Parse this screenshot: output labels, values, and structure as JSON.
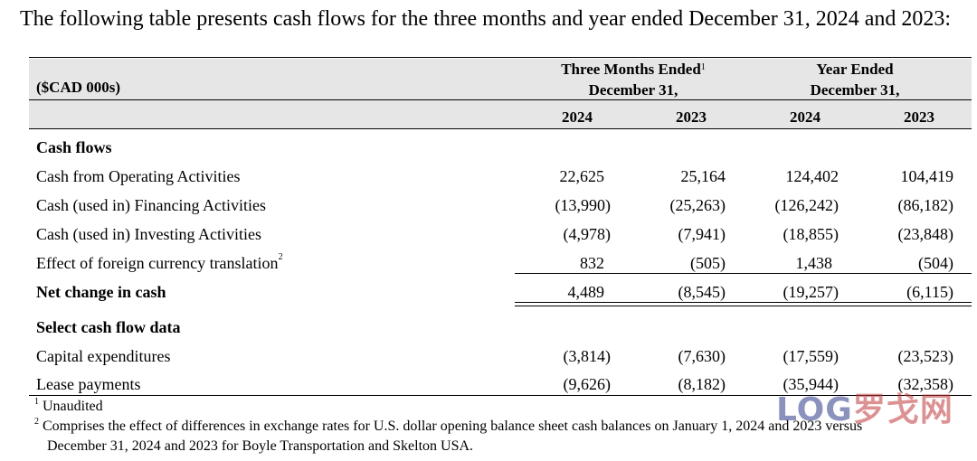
{
  "intro": "The following table presents cash flows for the three months and year ended December 31, 2024 and 2023:",
  "table": {
    "unit_label": "($CAD 000s)",
    "group1": {
      "line1": "Three Months Ended",
      "footnote_ref": "1",
      "line2": "December 31,"
    },
    "group2": {
      "line1": "Year Ended",
      "line2": "December 31,"
    },
    "years": [
      "2024",
      "2023",
      "2024",
      "2023"
    ],
    "section1": "Cash flows",
    "rows": [
      {
        "label": "Cash from Operating Activities",
        "values": [
          "22,625",
          "25,164",
          "124,402",
          "104,419"
        ]
      },
      {
        "label": "Cash (used in) Financing Activities",
        "values": [
          "(13,990)",
          "(25,263)",
          "(126,242)",
          "(86,182)"
        ]
      },
      {
        "label": "Cash (used in) Investing Activities",
        "values": [
          "(4,978)",
          "(7,941)",
          "(18,855)",
          "(23,848)"
        ]
      },
      {
        "label": "Effect of foreign currency translation",
        "footnote_ref": "2",
        "values": [
          "832",
          "(505)",
          "1,438",
          "(504)"
        ]
      }
    ],
    "net": {
      "label": "Net change in cash",
      "values": [
        "4,489",
        "(8,545)",
        "(19,257)",
        "(6,115)"
      ]
    },
    "section2": "Select cash flow data",
    "rows2": [
      {
        "label": "Capital expenditures",
        "values": [
          "(3,814)",
          "(7,630)",
          "(17,559)",
          "(23,523)"
        ]
      },
      {
        "label": "Lease payments",
        "values": [
          "(9,626)",
          "(8,182)",
          "(35,944)",
          "(32,358)"
        ]
      }
    ]
  },
  "footnotes": {
    "n1_mark": "1",
    "n1_text": "Unaudited",
    "n2_mark": "2",
    "n2_text1": "Comprises the effect of differences in exchange rates for U.S. dollar opening balance sheet cash balances on January 1, 2024 and 2023 versus",
    "n2_text2": "December 31, 2024 and 2023 for Boyle Transportation and Skelton USA."
  },
  "watermark": {
    "part1": "LOG",
    "part2": "罗戈网"
  }
}
